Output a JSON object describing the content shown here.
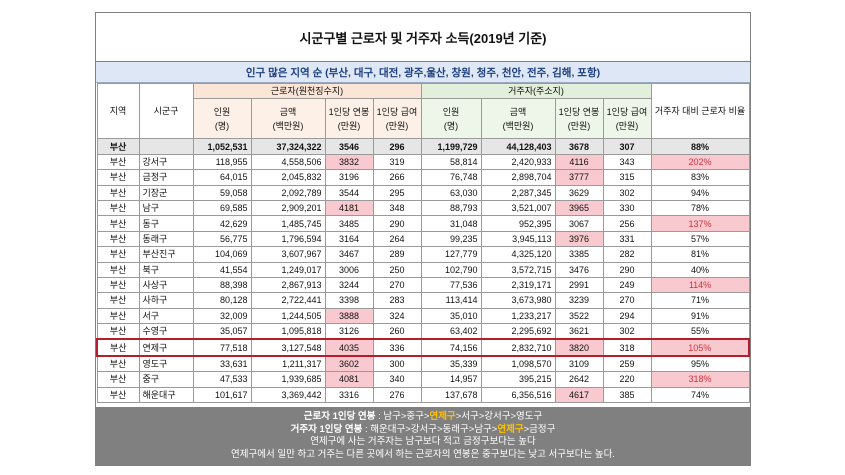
{
  "title": "시군구별 근로자 및 거주자 소득(2019년 기준)",
  "subtitle": "인구 많은 지역 순 (부산, 대구, 대전, 광주,울산, 창원, 청주, 천안, 전주, 김해, 포항)",
  "headers": {
    "region": "지역",
    "district": "시군구",
    "work_group": "근로자(원천징수지)",
    "home_group": "거주자(주소지)",
    "ratio": "거주자 대비 근로자 비율",
    "cols": [
      {
        "line1": "인원",
        "line2": "(명)"
      },
      {
        "line1": "금액",
        "line2": "(백만원)"
      },
      {
        "line1": "1인당 연봉",
        "line2": "(만원)"
      },
      {
        "line1": "1인당 급여",
        "line2": "(만원)"
      }
    ]
  },
  "total": {
    "region": "부산",
    "district": "",
    "w_people": "1,052,531",
    "w_amount": "37,324,322",
    "w_annual": "3546",
    "w_monthly": "296",
    "h_people": "1,199,729",
    "h_amount": "44,128,403",
    "h_annual": "3678",
    "h_monthly": "307",
    "ratio": "88%"
  },
  "rows": [
    {
      "region": "부산",
      "district": "강서구",
      "w_people": "118,955",
      "w_amount": "4,558,506",
      "w_annual": "3832",
      "w_monthly": "319",
      "h_people": "58,814",
      "h_amount": "2,420,933",
      "h_annual": "4116",
      "h_monthly": "343",
      "ratio": "202%",
      "w_hl": true,
      "h_hl": true,
      "r_hl": true
    },
    {
      "region": "부산",
      "district": "금정구",
      "w_people": "64,015",
      "w_amount": "2,045,832",
      "w_annual": "3196",
      "w_monthly": "266",
      "h_people": "76,748",
      "h_amount": "2,898,704",
      "h_annual": "3777",
      "h_monthly": "315",
      "ratio": "83%",
      "w_hl": false,
      "h_hl": true,
      "r_hl": false
    },
    {
      "region": "부산",
      "district": "기장군",
      "w_people": "59,058",
      "w_amount": "2,092,789",
      "w_annual": "3544",
      "w_monthly": "295",
      "h_people": "63,030",
      "h_amount": "2,287,345",
      "h_annual": "3629",
      "h_monthly": "302",
      "ratio": "94%",
      "w_hl": false,
      "h_hl": false,
      "r_hl": false
    },
    {
      "region": "부산",
      "district": "남구",
      "w_people": "69,585",
      "w_amount": "2,909,201",
      "w_annual": "4181",
      "w_monthly": "348",
      "h_people": "88,793",
      "h_amount": "3,521,007",
      "h_annual": "3965",
      "h_monthly": "330",
      "ratio": "78%",
      "w_hl": true,
      "h_hl": true,
      "r_hl": false
    },
    {
      "region": "부산",
      "district": "동구",
      "w_people": "42,629",
      "w_amount": "1,485,745",
      "w_annual": "3485",
      "w_monthly": "290",
      "h_people": "31,048",
      "h_amount": "952,395",
      "h_annual": "3067",
      "h_monthly": "256",
      "ratio": "137%",
      "w_hl": false,
      "h_hl": false,
      "r_hl": true
    },
    {
      "region": "부산",
      "district": "동래구",
      "w_people": "56,775",
      "w_amount": "1,796,594",
      "w_annual": "3164",
      "w_monthly": "264",
      "h_people": "99,235",
      "h_amount": "3,945,113",
      "h_annual": "3976",
      "h_monthly": "331",
      "ratio": "57%",
      "w_hl": false,
      "h_hl": true,
      "r_hl": false
    },
    {
      "region": "부산",
      "district": "부산진구",
      "w_people": "104,069",
      "w_amount": "3,607,967",
      "w_annual": "3467",
      "w_monthly": "289",
      "h_people": "127,779",
      "h_amount": "4,325,120",
      "h_annual": "3385",
      "h_monthly": "282",
      "ratio": "81%",
      "w_hl": false,
      "h_hl": false,
      "r_hl": false
    },
    {
      "region": "부산",
      "district": "북구",
      "w_people": "41,554",
      "w_amount": "1,249,017",
      "w_annual": "3006",
      "w_monthly": "250",
      "h_people": "102,790",
      "h_amount": "3,572,715",
      "h_annual": "3476",
      "h_monthly": "290",
      "ratio": "40%",
      "w_hl": false,
      "h_hl": false,
      "r_hl": false
    },
    {
      "region": "부산",
      "district": "사상구",
      "w_people": "88,398",
      "w_amount": "2,867,913",
      "w_annual": "3244",
      "w_monthly": "270",
      "h_people": "77,536",
      "h_amount": "2,319,171",
      "h_annual": "2991",
      "h_monthly": "249",
      "ratio": "114%",
      "w_hl": false,
      "h_hl": false,
      "r_hl": true
    },
    {
      "region": "부산",
      "district": "사하구",
      "w_people": "80,128",
      "w_amount": "2,722,441",
      "w_annual": "3398",
      "w_monthly": "283",
      "h_people": "113,414",
      "h_amount": "3,673,980",
      "h_annual": "3239",
      "h_monthly": "270",
      "ratio": "71%",
      "w_hl": false,
      "h_hl": false,
      "r_hl": false
    },
    {
      "region": "부산",
      "district": "서구",
      "w_people": "32,009",
      "w_amount": "1,244,505",
      "w_annual": "3888",
      "w_monthly": "324",
      "h_people": "35,010",
      "h_amount": "1,233,217",
      "h_annual": "3522",
      "h_monthly": "294",
      "ratio": "91%",
      "w_hl": true,
      "h_hl": false,
      "r_hl": false
    },
    {
      "region": "부산",
      "district": "수영구",
      "w_people": "35,057",
      "w_amount": "1,095,818",
      "w_annual": "3126",
      "w_monthly": "260",
      "h_people": "63,402",
      "h_amount": "2,295,692",
      "h_annual": "3621",
      "h_monthly": "302",
      "ratio": "55%",
      "w_hl": false,
      "h_hl": false,
      "r_hl": false
    },
    {
      "region": "부산",
      "district": "연제구",
      "w_people": "77,518",
      "w_amount": "3,127,548",
      "w_annual": "4035",
      "w_monthly": "336",
      "h_people": "74,156",
      "h_amount": "2,832,710",
      "h_annual": "3820",
      "h_monthly": "318",
      "ratio": "105%",
      "w_hl": true,
      "h_hl": true,
      "r_hl": true,
      "focus": true
    },
    {
      "region": "부산",
      "district": "영도구",
      "w_people": "33,631",
      "w_amount": "1,211,317",
      "w_annual": "3602",
      "w_monthly": "300",
      "h_people": "35,339",
      "h_amount": "1,098,570",
      "h_annual": "3109",
      "h_monthly": "259",
      "ratio": "95%",
      "w_hl": true,
      "h_hl": false,
      "r_hl": false
    },
    {
      "region": "부산",
      "district": "중구",
      "w_people": "47,533",
      "w_amount": "1,939,685",
      "w_annual": "4081",
      "w_monthly": "340",
      "h_people": "14,957",
      "h_amount": "395,215",
      "h_annual": "2642",
      "h_monthly": "220",
      "ratio": "318%",
      "w_hl": true,
      "h_hl": false,
      "r_hl": true
    },
    {
      "region": "부산",
      "district": "해운대구",
      "w_people": "101,617",
      "w_amount": "3,369,442",
      "w_annual": "3316",
      "w_monthly": "276",
      "h_people": "137,678",
      "h_amount": "6,356,516",
      "h_annual": "4617",
      "h_monthly": "385",
      "ratio": "74%",
      "w_hl": false,
      "h_hl": true,
      "r_hl": false
    }
  ],
  "summary": {
    "line1_label": "근로자 1인당 연봉",
    "line1_pre": " : 남구>중구>",
    "line1_hl": "연제구",
    "line1_post": ">서구>강서구>영도구",
    "line2_label": "거주자 1인당 연봉",
    "line2_pre": " : 해운대구>강서구>동래구>남구>",
    "line2_hl": "연제구",
    "line2_post": ">금정구",
    "line3": "연제구에 사는 거주자는 남구보다 적고 금정구보다는 높다",
    "line4": "연제구에서 일만 하고 거주는 다른 곳에서 하는 근로자의 연봉은 중구보다는 낮고 서구보다는 높다."
  },
  "colors": {
    "highlight": "#f8c9cf",
    "work_header": "#fbe5d6",
    "home_header": "#e2efda",
    "subtitle_bg": "#dde7f5",
    "focus_border": "#b71c2c",
    "summary_bg": "#808080",
    "summary_accent": "#ffc000"
  }
}
